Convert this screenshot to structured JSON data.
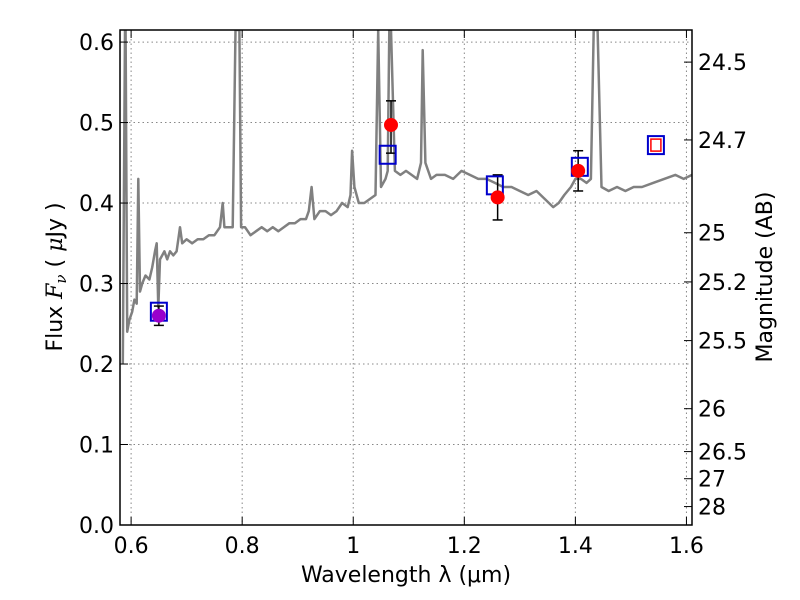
{
  "chart_data": {
    "type": "line",
    "xlabel": "Wavelength  λ (μm)",
    "ylabel": "Flux  F_ν  ( μJy )",
    "ylabel_right": "Magnitude (AB)",
    "xlim": [
      0.58,
      1.61
    ],
    "ylim": [
      0.0,
      0.615
    ],
    "grid": true,
    "x_ticks": [
      {
        "value": 0.6,
        "label": "0.6"
      },
      {
        "value": 0.8,
        "label": "0.8"
      },
      {
        "value": 1.0,
        "label": "1"
      },
      {
        "value": 1.2,
        "label": "1.2"
      },
      {
        "value": 1.4,
        "label": "1.4"
      },
      {
        "value": 1.6,
        "label": "1.6"
      }
    ],
    "y_ticks": [
      {
        "value": 0.0,
        "label": "0.0"
      },
      {
        "value": 0.1,
        "label": "0.1"
      },
      {
        "value": 0.2,
        "label": "0.2"
      },
      {
        "value": 0.3,
        "label": "0.3"
      },
      {
        "value": 0.4,
        "label": "0.4"
      },
      {
        "value": 0.5,
        "label": "0.5"
      },
      {
        "value": 0.6,
        "label": "0.6"
      }
    ],
    "right_ticks": [
      {
        "label": "24.5",
        "flux": 0.5751
      },
      {
        "label": "24.7",
        "flux": 0.4784
      },
      {
        "label": "25",
        "flux": 0.3631
      },
      {
        "label": "25.2",
        "flux": 0.302
      },
      {
        "label": "25.5",
        "flux": 0.2291
      },
      {
        "label": "26",
        "flux": 0.1445
      },
      {
        "label": "26.5",
        "flux": 0.0912
      },
      {
        "label": "27",
        "flux": 0.0575
      },
      {
        "label": "28",
        "flux": 0.0229
      }
    ],
    "series": [
      {
        "kind": "spectrum",
        "color": "#808080",
        "points": [
          [
            0.585,
            0.2
          ],
          [
            0.589,
            0.615
          ],
          [
            0.59,
            0.615
          ],
          [
            0.593,
            0.24
          ],
          [
            0.597,
            0.255
          ],
          [
            0.602,
            0.265
          ],
          [
            0.606,
            0.28
          ],
          [
            0.61,
            0.275
          ],
          [
            0.613,
            0.43
          ],
          [
            0.616,
            0.29
          ],
          [
            0.62,
            0.3
          ],
          [
            0.626,
            0.31
          ],
          [
            0.633,
            0.305
          ],
          [
            0.638,
            0.32
          ],
          [
            0.643,
            0.34
          ],
          [
            0.646,
            0.35
          ],
          [
            0.649,
            0.27
          ],
          [
            0.652,
            0.33
          ],
          [
            0.656,
            0.335
          ],
          [
            0.66,
            0.34
          ],
          [
            0.665,
            0.33
          ],
          [
            0.67,
            0.34
          ],
          [
            0.676,
            0.335
          ],
          [
            0.682,
            0.34
          ],
          [
            0.686,
            0.36
          ],
          [
            0.688,
            0.37
          ],
          [
            0.692,
            0.35
          ],
          [
            0.7,
            0.355
          ],
          [
            0.71,
            0.35
          ],
          [
            0.72,
            0.355
          ],
          [
            0.73,
            0.355
          ],
          [
            0.74,
            0.36
          ],
          [
            0.75,
            0.36
          ],
          [
            0.76,
            0.37
          ],
          [
            0.765,
            0.4
          ],
          [
            0.768,
            0.37
          ],
          [
            0.775,
            0.37
          ],
          [
            0.783,
            0.37
          ],
          [
            0.788,
            0.615
          ],
          [
            0.795,
            0.615
          ],
          [
            0.798,
            0.37
          ],
          [
            0.805,
            0.37
          ],
          [
            0.815,
            0.36
          ],
          [
            0.825,
            0.365
          ],
          [
            0.835,
            0.37
          ],
          [
            0.845,
            0.365
          ],
          [
            0.855,
            0.37
          ],
          [
            0.865,
            0.365
          ],
          [
            0.875,
            0.37
          ],
          [
            0.885,
            0.375
          ],
          [
            0.895,
            0.375
          ],
          [
            0.905,
            0.38
          ],
          [
            0.915,
            0.38
          ],
          [
            0.92,
            0.39
          ],
          [
            0.925,
            0.42
          ],
          [
            0.93,
            0.38
          ],
          [
            0.94,
            0.39
          ],
          [
            0.95,
            0.39
          ],
          [
            0.96,
            0.385
          ],
          [
            0.97,
            0.39
          ],
          [
            0.98,
            0.4
          ],
          [
            0.99,
            0.395
          ],
          [
            0.995,
            0.41
          ],
          [
            0.998,
            0.465
          ],
          [
            1.002,
            0.42
          ],
          [
            1.01,
            0.4
          ],
          [
            1.02,
            0.4
          ],
          [
            1.03,
            0.405
          ],
          [
            1.04,
            0.41
          ],
          [
            1.045,
            0.615
          ],
          [
            1.05,
            0.42
          ],
          [
            1.058,
            0.43
          ],
          [
            1.062,
            0.44
          ],
          [
            1.065,
            0.615
          ],
          [
            1.068,
            0.615
          ],
          [
            1.075,
            0.44
          ],
          [
            1.085,
            0.435
          ],
          [
            1.095,
            0.44
          ],
          [
            1.105,
            0.435
          ],
          [
            1.115,
            0.43
          ],
          [
            1.122,
            0.45
          ],
          [
            1.125,
            0.59
          ],
          [
            1.13,
            0.45
          ],
          [
            1.14,
            0.43
          ],
          [
            1.15,
            0.435
          ],
          [
            1.165,
            0.435
          ],
          [
            1.18,
            0.43
          ],
          [
            1.195,
            0.44
          ],
          [
            1.21,
            0.435
          ],
          [
            1.225,
            0.43
          ],
          [
            1.24,
            0.43
          ],
          [
            1.255,
            0.425
          ],
          [
            1.27,
            0.42
          ],
          [
            1.285,
            0.42
          ],
          [
            1.3,
            0.415
          ],
          [
            1.315,
            0.41
          ],
          [
            1.33,
            0.415
          ],
          [
            1.345,
            0.405
          ],
          [
            1.36,
            0.395
          ],
          [
            1.37,
            0.4
          ],
          [
            1.38,
            0.41
          ],
          [
            1.392,
            0.42
          ],
          [
            1.4,
            0.43
          ],
          [
            1.41,
            0.43
          ],
          [
            1.42,
            0.425
          ],
          [
            1.428,
            0.43
          ],
          [
            1.433,
            0.615
          ],
          [
            1.44,
            0.615
          ],
          [
            1.447,
            0.42
          ],
          [
            1.46,
            0.415
          ],
          [
            1.475,
            0.42
          ],
          [
            1.49,
            0.415
          ],
          [
            1.505,
            0.42
          ],
          [
            1.52,
            0.42
          ],
          [
            1.54,
            0.425
          ],
          [
            1.56,
            0.43
          ],
          [
            1.58,
            0.435
          ],
          [
            1.595,
            0.43
          ],
          [
            1.61,
            0.435
          ]
        ]
      },
      {
        "kind": "observed",
        "color": "#ff0000",
        "points": [
          {
            "x": 0.65,
            "y": 0.26,
            "yerr_low": 0.012,
            "yerr_high": 0.012,
            "color": "#9900cc"
          },
          {
            "x": 1.068,
            "y": 0.497,
            "yerr_low": 0.035,
            "yerr_high": 0.03
          },
          {
            "x": 1.26,
            "y": 0.407,
            "yerr_low": 0.028,
            "yerr_high": 0.028
          },
          {
            "x": 1.405,
            "y": 0.44,
            "yerr_low": 0.025,
            "yerr_high": 0.025
          }
        ]
      },
      {
        "kind": "model",
        "color": "#0000cc",
        "points": [
          {
            "x": 0.65,
            "y": 0.265
          },
          {
            "x": 1.062,
            "y": 0.46
          },
          {
            "x": 1.255,
            "y": 0.422
          },
          {
            "x": 1.408,
            "y": 0.445
          },
          {
            "x": 1.545,
            "y": 0.472
          }
        ]
      }
    ]
  }
}
